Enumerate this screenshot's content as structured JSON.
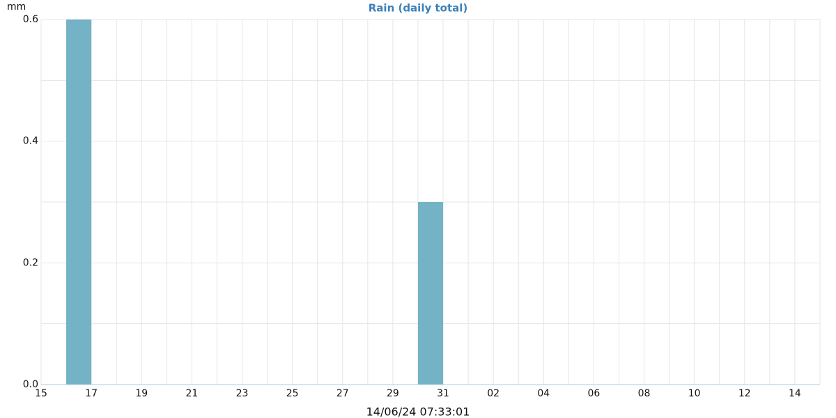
{
  "chart_data": {
    "type": "bar",
    "title": "Rain (daily total)",
    "y_label": "mm",
    "timestamp": "14/06/24 07:33:01",
    "categories": [
      "15",
      null,
      "17",
      null,
      "19",
      null,
      "21",
      null,
      "23",
      null,
      "25",
      null,
      "27",
      null,
      "29",
      null,
      "31",
      null,
      "02",
      null,
      "04",
      null,
      "06",
      null,
      "08",
      null,
      "10",
      null,
      "12",
      null,
      "14"
    ],
    "values": [
      0,
      0.6,
      0,
      0,
      0,
      0,
      0,
      0,
      0,
      0,
      0,
      0,
      0,
      0,
      0,
      0.3,
      0,
      0,
      0,
      0,
      0,
      0,
      0,
      0,
      0,
      0,
      0,
      0,
      0,
      0,
      0
    ],
    "color": "#74b2c5",
    "ylim": [
      0,
      0.6
    ],
    "yticks": [
      {
        "value": 0,
        "label": "0.0"
      },
      0.2,
      0.4,
      0.6
    ],
    "minor_yticks": [
      0.1,
      0.3,
      0.5
    ],
    "grid": true
  }
}
